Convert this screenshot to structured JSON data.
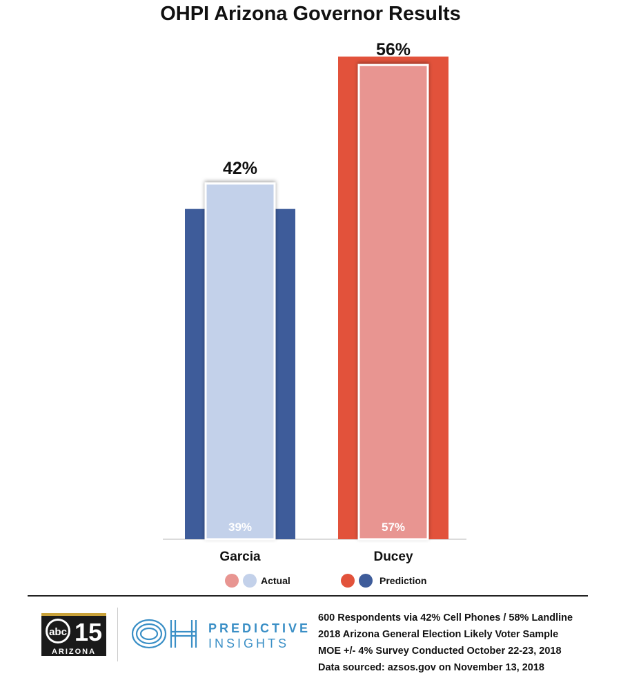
{
  "chart_data": {
    "type": "bar",
    "title": "OHPI Arizona Governor Results",
    "categories": [
      "Garcia",
      "Ducey"
    ],
    "series": [
      {
        "name": "Actual",
        "values": [
          42,
          56
        ]
      },
      {
        "name": "Prediction",
        "values": [
          39,
          57
        ]
      }
    ],
    "top_labels": [
      "42%",
      "56%"
    ],
    "inner_labels": [
      "39%",
      "57%"
    ],
    "ylim": [
      0,
      60
    ],
    "grid": false,
    "legend_position": "bottom",
    "colors": {
      "Garcia": {
        "actual": "#c3d1ea",
        "prediction": "#3e5c9a"
      },
      "Ducey": {
        "actual": "#e89591",
        "prediction": "#e2523b"
      }
    }
  },
  "legend": {
    "actual_label": "Actual",
    "prediction_label": "Prediction"
  },
  "footer": {
    "abc_logo": {
      "station": "abc",
      "number": "15",
      "region": "ARIZONA"
    },
    "ph_logo": {
      "mark": "OH",
      "line1": "PREDICTIVE",
      "line2": "INSIGHTS"
    },
    "notes": [
      "600 Respondents via 42% Cell Phones / 58% Landline",
      "2018 Arizona General Election Likely Voter Sample",
      "MOE +/- 4% Survey Conducted October 22-23, 2018",
      "Data sourced: azsos.gov on November 13, 2018"
    ]
  }
}
